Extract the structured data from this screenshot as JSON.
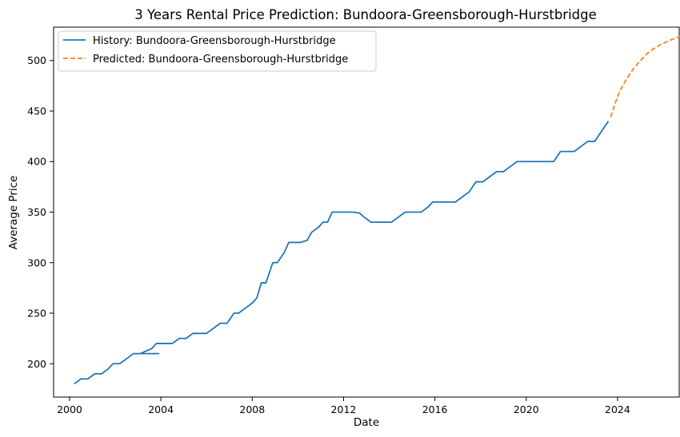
{
  "chart_data": {
    "type": "line",
    "title": "3 Years Rental Price Prediction: Bundoora-Greensborough-Hurstbridge",
    "xlabel": "Date",
    "ylabel": "Average Price",
    "xlim": [
      1999.3,
      2026.7
    ],
    "ylim": [
      167,
      533
    ],
    "x_ticks": [
      2000,
      2004,
      2008,
      2012,
      2016,
      2020,
      2024
    ],
    "y_ticks": [
      200,
      250,
      300,
      350,
      400,
      450,
      500
    ],
    "grid": false,
    "legend_position": "top-left",
    "series": [
      {
        "name": "History: Bundoora-Greensborough-Hurstbridge",
        "color": "#1f77b4",
        "style": "solid",
        "points": [
          [
            2000.2,
            180
          ],
          [
            2000.5,
            185
          ],
          [
            2000.8,
            185
          ],
          [
            2001.1,
            190
          ],
          [
            2001.4,
            190
          ],
          [
            2001.7,
            195
          ],
          [
            2001.9,
            200
          ],
          [
            2002.2,
            200
          ],
          [
            2002.5,
            205
          ],
          [
            2002.8,
            210
          ],
          [
            2003.4,
            210
          ],
          [
            2003.9,
            210
          ],
          [
            2003.1,
            210
          ],
          [
            2003.3,
            212
          ],
          [
            2003.6,
            215
          ],
          [
            2003.8,
            220
          ],
          [
            2004.2,
            220
          ],
          [
            2004.5,
            220
          ],
          [
            2004.8,
            225
          ],
          [
            2005.1,
            225
          ],
          [
            2005.4,
            230
          ],
          [
            2005.7,
            230
          ],
          [
            2006.0,
            230
          ],
          [
            2006.3,
            235
          ],
          [
            2006.6,
            240
          ],
          [
            2006.9,
            240
          ],
          [
            2007.2,
            250
          ],
          [
            2007.4,
            250
          ],
          [
            2007.7,
            255
          ],
          [
            2008.0,
            260
          ],
          [
            2008.2,
            265
          ],
          [
            2008.4,
            280
          ],
          [
            2008.6,
            280
          ],
          [
            2008.9,
            300
          ],
          [
            2009.1,
            300
          ],
          [
            2009.4,
            310
          ],
          [
            2009.6,
            320
          ],
          [
            2009.9,
            320
          ],
          [
            2010.1,
            320
          ],
          [
            2010.4,
            322
          ],
          [
            2010.6,
            330
          ],
          [
            2010.9,
            335
          ],
          [
            2011.1,
            340
          ],
          [
            2011.3,
            340
          ],
          [
            2011.5,
            350
          ],
          [
            2012.0,
            350
          ],
          [
            2012.4,
            350
          ],
          [
            2012.7,
            349
          ],
          [
            2012.9,
            345
          ],
          [
            2013.2,
            340
          ],
          [
            2013.5,
            340
          ],
          [
            2013.8,
            340
          ],
          [
            2014.1,
            340
          ],
          [
            2014.4,
            345
          ],
          [
            2014.7,
            350
          ],
          [
            2015.0,
            350
          ],
          [
            2015.4,
            350
          ],
          [
            2015.7,
            355
          ],
          [
            2015.9,
            360
          ],
          [
            2016.3,
            360
          ],
          [
            2016.6,
            360
          ],
          [
            2016.9,
            360
          ],
          [
            2017.2,
            365
          ],
          [
            2017.5,
            370
          ],
          [
            2017.8,
            380
          ],
          [
            2018.1,
            380
          ],
          [
            2018.4,
            385
          ],
          [
            2018.7,
            390
          ],
          [
            2019.0,
            390
          ],
          [
            2019.3,
            395
          ],
          [
            2019.6,
            400
          ],
          [
            2020.0,
            400
          ],
          [
            2020.5,
            400
          ],
          [
            2021.0,
            400
          ],
          [
            2021.2,
            400
          ],
          [
            2021.5,
            410
          ],
          [
            2021.8,
            410
          ],
          [
            2022.1,
            410
          ],
          [
            2022.4,
            415
          ],
          [
            2022.7,
            420
          ],
          [
            2023.0,
            420
          ],
          [
            2023.3,
            430
          ],
          [
            2023.6,
            440
          ]
        ]
      },
      {
        "name": "Predicted: Bundoora-Greensborough-Hurstbridge",
        "color": "#ff7f0e",
        "style": "dashed",
        "points": [
          [
            2023.7,
            444
          ],
          [
            2023.9,
            458
          ],
          [
            2024.1,
            470
          ],
          [
            2024.4,
            482
          ],
          [
            2024.7,
            492
          ],
          [
            2025.0,
            500
          ],
          [
            2025.3,
            507
          ],
          [
            2025.6,
            512
          ],
          [
            2025.9,
            516
          ],
          [
            2026.2,
            519
          ],
          [
            2026.5,
            522
          ],
          [
            2026.9,
            525
          ]
        ]
      }
    ]
  }
}
